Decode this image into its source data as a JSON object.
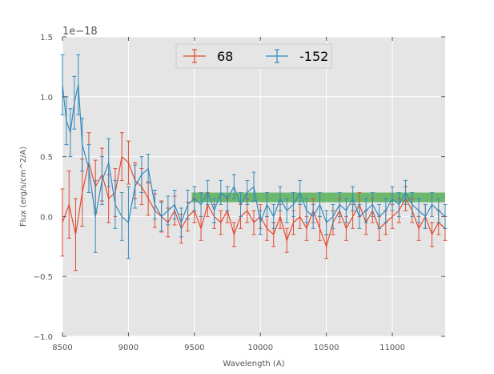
{
  "chart_data": {
    "type": "line",
    "title": "",
    "xlabel": "Wavelength (A)",
    "ylabel": "Flux (erg/s/cm^2/A)",
    "y_offset_label": "1e−18",
    "xlim": [
      8500,
      11400
    ],
    "ylim": [
      -1.0,
      1.5
    ],
    "y_scale_factor": 1e-18,
    "x_ticks": [
      8500,
      9000,
      9500,
      10000,
      10500,
      11000
    ],
    "y_ticks": [
      -1.0,
      -0.5,
      0.0,
      0.5,
      1.0,
      1.5
    ],
    "x_tick_labels": [
      "8500",
      "9000",
      "9500",
      "10000",
      "10500",
      "11000"
    ],
    "y_tick_labels": [
      "−1.0",
      "−0.5",
      "0.0",
      "0.5",
      "1.0",
      "1.5"
    ],
    "grid": true,
    "legend_position": "top-center",
    "band": {
      "x": [
        9480,
        11400
      ],
      "y": [
        0.12,
        0.2
      ],
      "color": "#2ca02c"
    },
    "series": [
      {
        "name": "68",
        "color": "#e24a33",
        "x": [
          8500,
          8550,
          8600,
          8650,
          8700,
          8750,
          8800,
          8850,
          8900,
          8950,
          9000,
          9050,
          9100,
          9150,
          9200,
          9250,
          9300,
          9350,
          9400,
          9450,
          9500,
          9550,
          9600,
          9650,
          9700,
          9750,
          9800,
          9850,
          9900,
          9950,
          10000,
          10050,
          10100,
          10150,
          10200,
          10250,
          10300,
          10350,
          10400,
          10450,
          10500,
          10550,
          10600,
          10650,
          10700,
          10750,
          10800,
          10850,
          10900,
          10950,
          11000,
          11050,
          11100,
          11150,
          11200,
          11250,
          11300,
          11350,
          11400
        ],
        "values": [
          -0.05,
          0.1,
          -0.15,
          0.2,
          0.45,
          0.25,
          0.35,
          0.15,
          0.2,
          0.5,
          0.45,
          0.3,
          0.25,
          0.15,
          0.05,
          0.0,
          -0.05,
          0.05,
          -0.1,
          0.0,
          0.05,
          -0.1,
          0.1,
          0.0,
          -0.05,
          0.05,
          -0.15,
          0.0,
          0.05,
          -0.05,
          0.0,
          -0.1,
          -0.15,
          0.0,
          -0.2,
          -0.05,
          0.0,
          -0.1,
          0.05,
          -0.1,
          -0.25,
          -0.05,
          0.05,
          -0.1,
          0.0,
          0.1,
          -0.05,
          0.05,
          -0.1,
          -0.05,
          0.0,
          0.05,
          0.15,
          0.05,
          -0.1,
          0.0,
          -0.15,
          -0.05,
          -0.1
        ],
        "errors": [
          0.28,
          0.28,
          0.3,
          0.28,
          0.25,
          0.22,
          0.22,
          0.2,
          0.2,
          0.2,
          0.18,
          0.15,
          0.15,
          0.14,
          0.14,
          0.13,
          0.12,
          0.12,
          0.12,
          0.12,
          0.1,
          0.1,
          0.1,
          0.1,
          0.1,
          0.1,
          0.1,
          0.1,
          0.1,
          0.1,
          0.1,
          0.1,
          0.1,
          0.1,
          0.1,
          0.1,
          0.1,
          0.1,
          0.1,
          0.1,
          0.1,
          0.1,
          0.1,
          0.1,
          0.1,
          0.1,
          0.1,
          0.1,
          0.1,
          0.1,
          0.1,
          0.1,
          0.1,
          0.1,
          0.1,
          0.1,
          0.1,
          0.1,
          0.1
        ]
      },
      {
        "name": "-152",
        "color": "#348abd",
        "x": [
          8500,
          8530,
          8560,
          8590,
          8620,
          8650,
          8700,
          8750,
          8800,
          8850,
          8900,
          8950,
          9000,
          9050,
          9100,
          9150,
          9200,
          9250,
          9300,
          9350,
          9400,
          9450,
          9500,
          9550,
          9600,
          9650,
          9700,
          9750,
          9800,
          9850,
          9900,
          9950,
          10000,
          10050,
          10100,
          10150,
          10200,
          10250,
          10300,
          10350,
          10400,
          10450,
          10500,
          10550,
          10600,
          10650,
          10700,
          10750,
          10800,
          10850,
          10900,
          10950,
          11000,
          11050,
          11100,
          11150,
          11200,
          11250,
          11300,
          11350,
          11400
        ],
        "values": [
          1.1,
          0.8,
          0.7,
          0.95,
          1.1,
          0.6,
          0.4,
          0.0,
          0.3,
          0.45,
          0.1,
          0.0,
          -0.05,
          0.25,
          0.35,
          0.4,
          0.1,
          0.0,
          0.05,
          0.1,
          -0.05,
          0.1,
          0.15,
          0.1,
          0.2,
          0.05,
          0.2,
          0.15,
          0.25,
          0.1,
          0.2,
          0.25,
          -0.05,
          0.1,
          0.0,
          0.15,
          0.05,
          0.1,
          0.2,
          0.05,
          0.0,
          0.1,
          -0.05,
          0.0,
          0.1,
          0.05,
          0.15,
          0.0,
          0.05,
          0.1,
          0.0,
          0.05,
          0.15,
          0.1,
          0.2,
          0.1,
          0.05,
          0.0,
          0.1,
          0.05,
          0.0
        ],
        "errors": [
          0.25,
          0.2,
          0.2,
          0.22,
          0.25,
          0.22,
          0.2,
          0.3,
          0.2,
          0.2,
          0.2,
          0.2,
          0.3,
          0.18,
          0.15,
          0.12,
          0.12,
          0.12,
          0.12,
          0.12,
          0.12,
          0.12,
          0.1,
          0.1,
          0.1,
          0.1,
          0.1,
          0.1,
          0.1,
          0.1,
          0.1,
          0.12,
          0.1,
          0.1,
          0.1,
          0.1,
          0.1,
          0.1,
          0.1,
          0.1,
          0.1,
          0.1,
          0.1,
          0.1,
          0.1,
          0.1,
          0.1,
          0.1,
          0.1,
          0.1,
          0.1,
          0.1,
          0.1,
          0.1,
          0.1,
          0.1,
          0.1,
          0.1,
          0.1,
          0.1,
          0.1
        ]
      }
    ]
  }
}
